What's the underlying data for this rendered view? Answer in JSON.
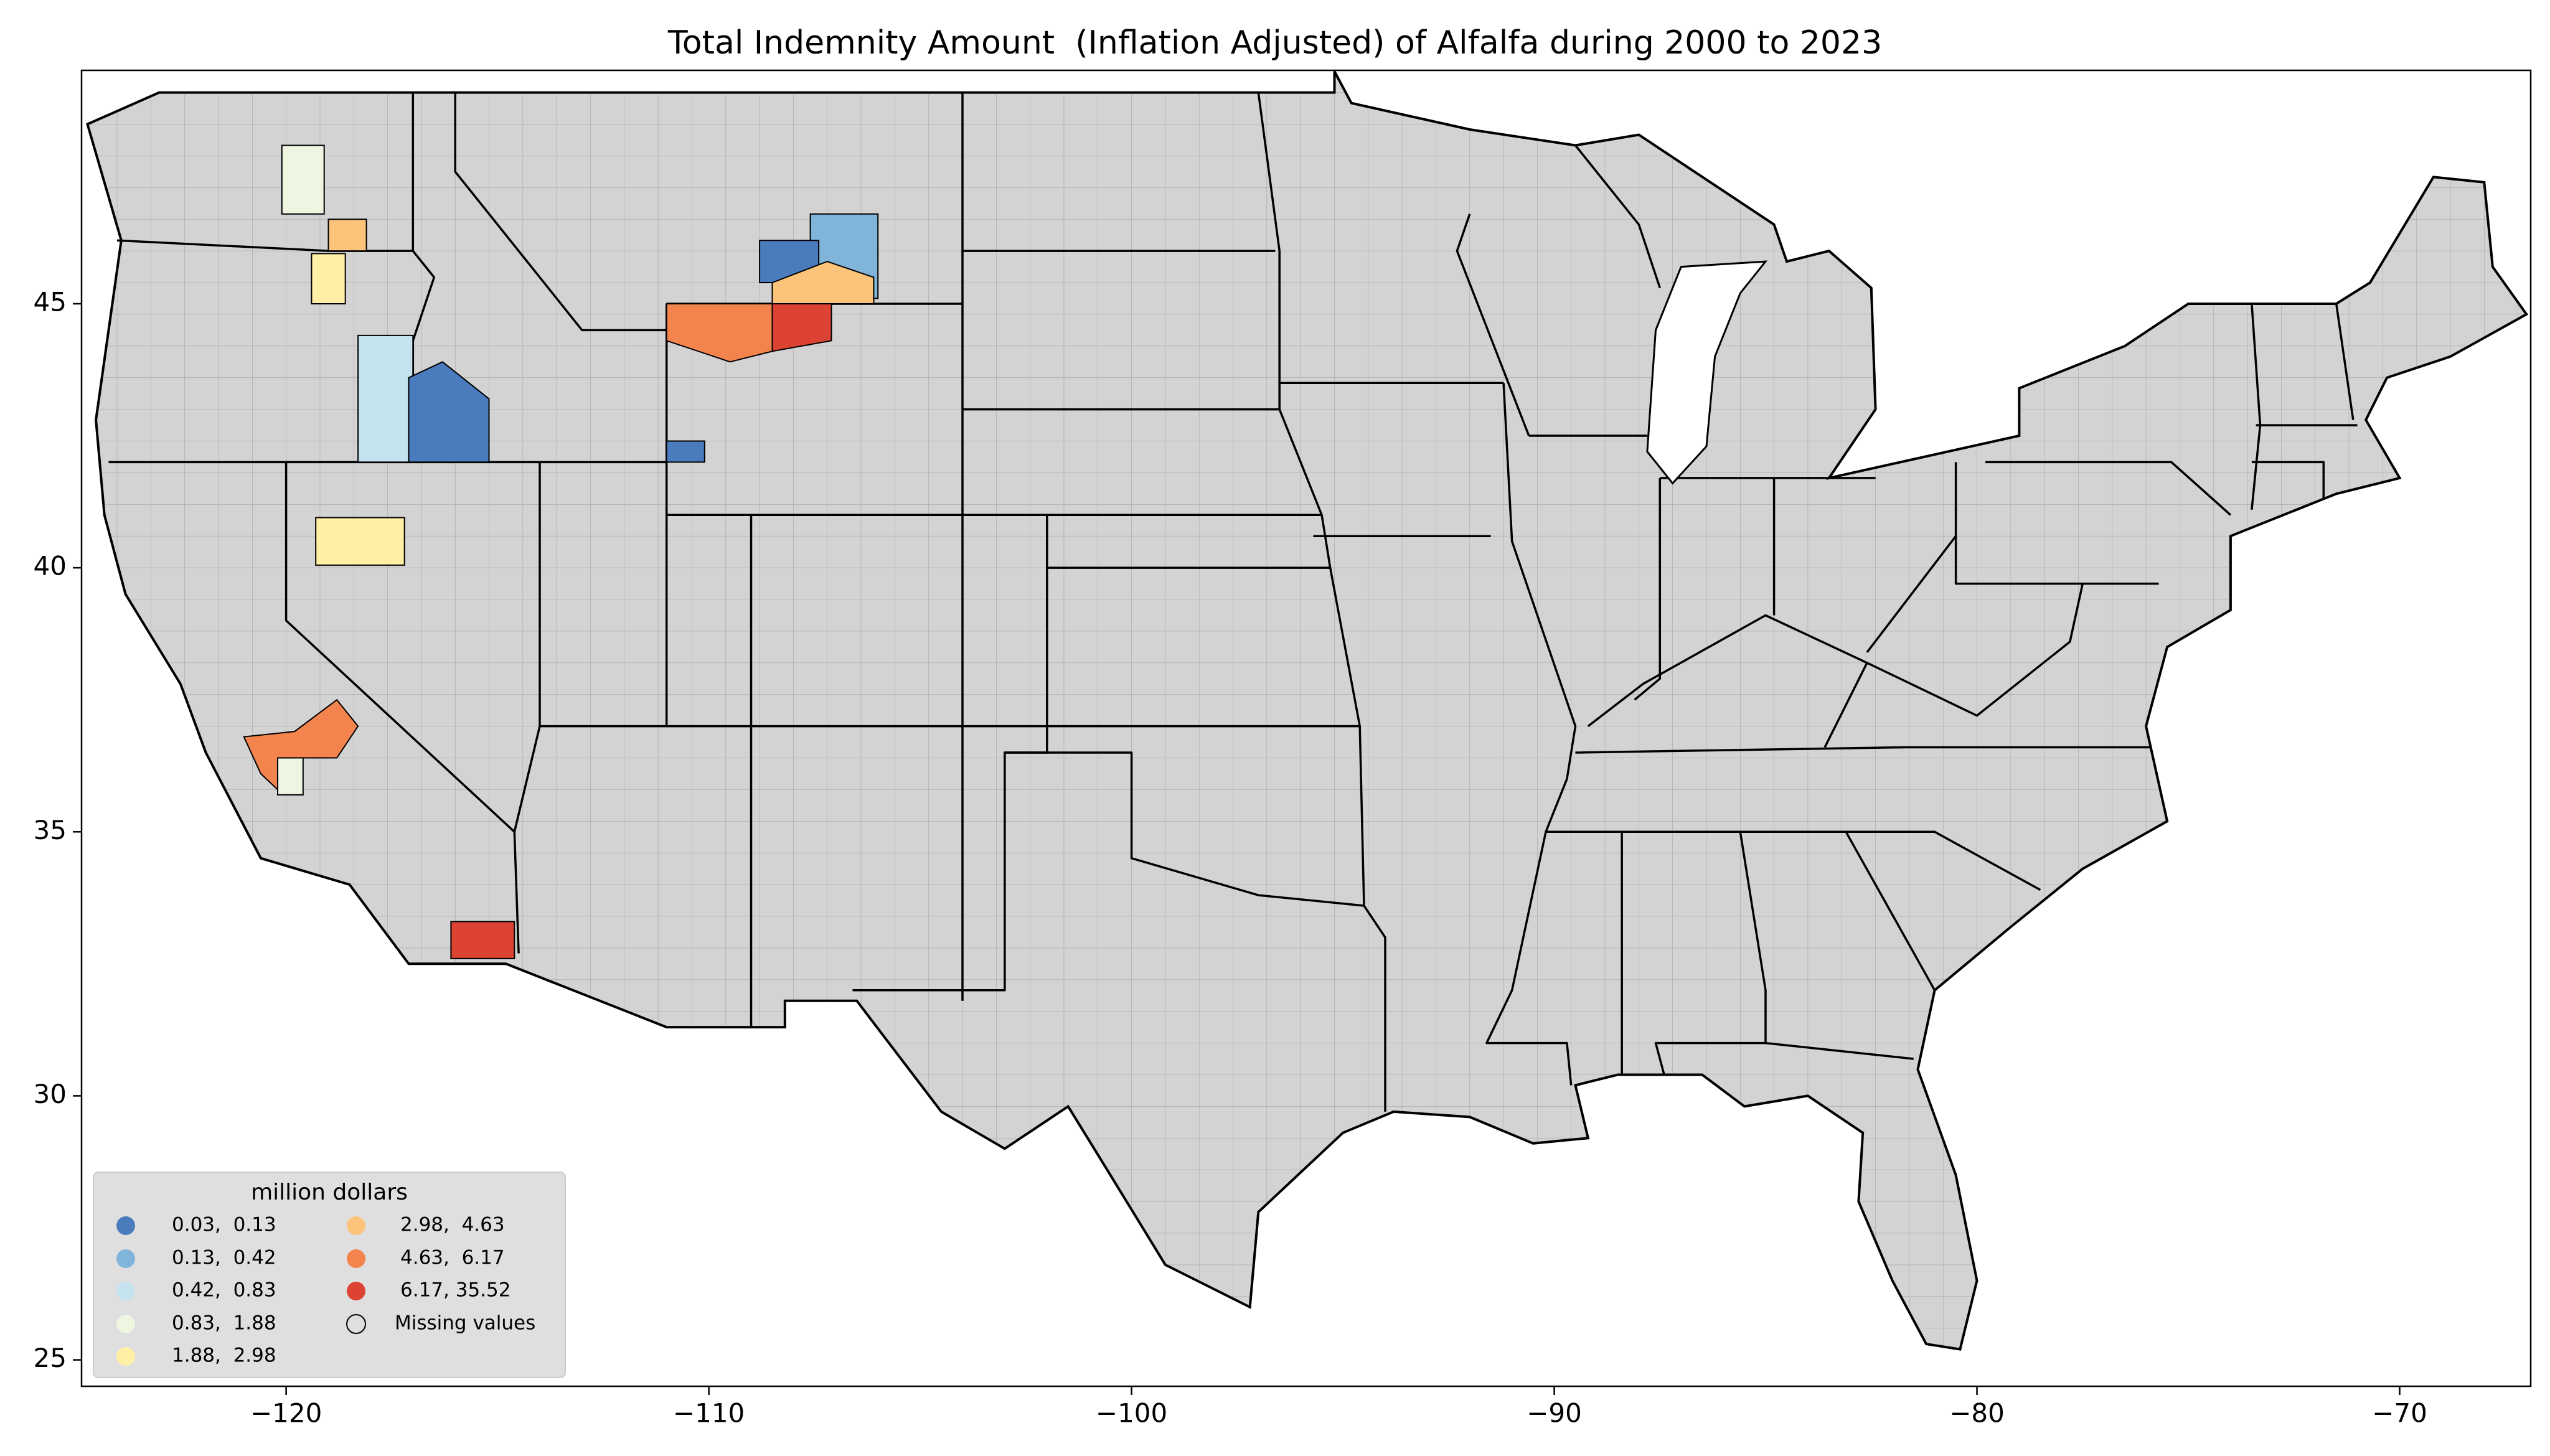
{
  "chart_data": {
    "type": "choropleth",
    "title": "Total Indemnity Amount  (Inflation Adjusted) of Alfalfa during 2000 to 2023",
    "xlim": [
      -124.84,
      -66.9
    ],
    "ylim": [
      24.5,
      49.42
    ],
    "xticks": [
      {
        "value": -120,
        "label": "−120"
      },
      {
        "value": -110,
        "label": "−110"
      },
      {
        "value": -100,
        "label": "−100"
      },
      {
        "value": -90,
        "label": "−90"
      },
      {
        "value": -80,
        "label": "−80"
      },
      {
        "value": -70,
        "label": "−70"
      }
    ],
    "yticks": [
      25,
      30,
      35,
      40,
      45
    ],
    "missing_color": "#d3d3d3",
    "legend": {
      "title": "million dollars",
      "position": "lower left",
      "entries": [
        {
          "label": "0.03,  0.13",
          "color": "#4a7bbd"
        },
        {
          "label": "0.13,  0.42",
          "color": "#80b5d9"
        },
        {
          "label": "0.42,  0.83",
          "color": "#c4e3ef"
        },
        {
          "label": "0.83,  1.88",
          "color": "#eef6e2"
        },
        {
          "label": "1.88,  2.98",
          "color": "#fff0a6"
        },
        {
          "label": "2.98,  4.63",
          "color": "#fcc47a"
        },
        {
          "label": "4.63,  6.17",
          "color": "#f4844e"
        },
        {
          "label": "6.17, 35.52",
          "color": "#dd4333"
        }
      ],
      "missing_label": "Missing values"
    }
  }
}
